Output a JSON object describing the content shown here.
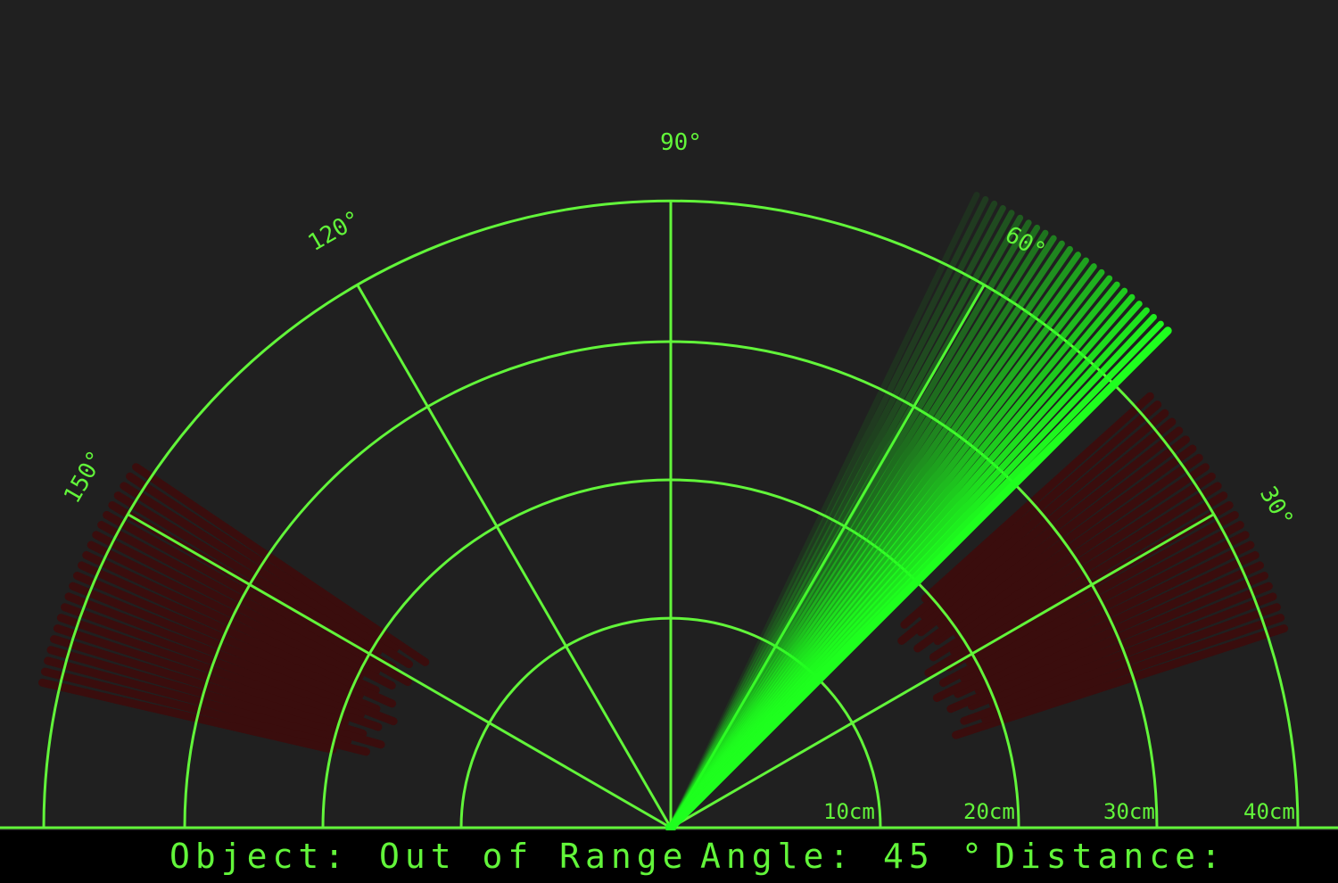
{
  "colors": {
    "background": "#202020",
    "grid": "#62f53a",
    "sweep": "#1eff1e",
    "detected": "#3a0d0d",
    "status_bg": "#000000",
    "status_text": "#62f53a"
  },
  "radar": {
    "sweep_angle_deg": 45,
    "angle_labels": [
      "30°",
      "60°",
      "90°",
      "120°",
      "150°"
    ],
    "range_labels": [
      "10cm",
      "20cm",
      "30cm",
      "40cm"
    ],
    "detections": [
      {
        "angle_from": 18,
        "angle_to": 42
      },
      {
        "angle_from": 146,
        "angle_to": 167
      }
    ]
  },
  "status": {
    "object_label": "Object:",
    "object_value": "Out of Range",
    "angle_label": "Angle:",
    "angle_value": "45",
    "angle_unit": "°",
    "distance_label": "Distance:",
    "distance_value": ""
  }
}
